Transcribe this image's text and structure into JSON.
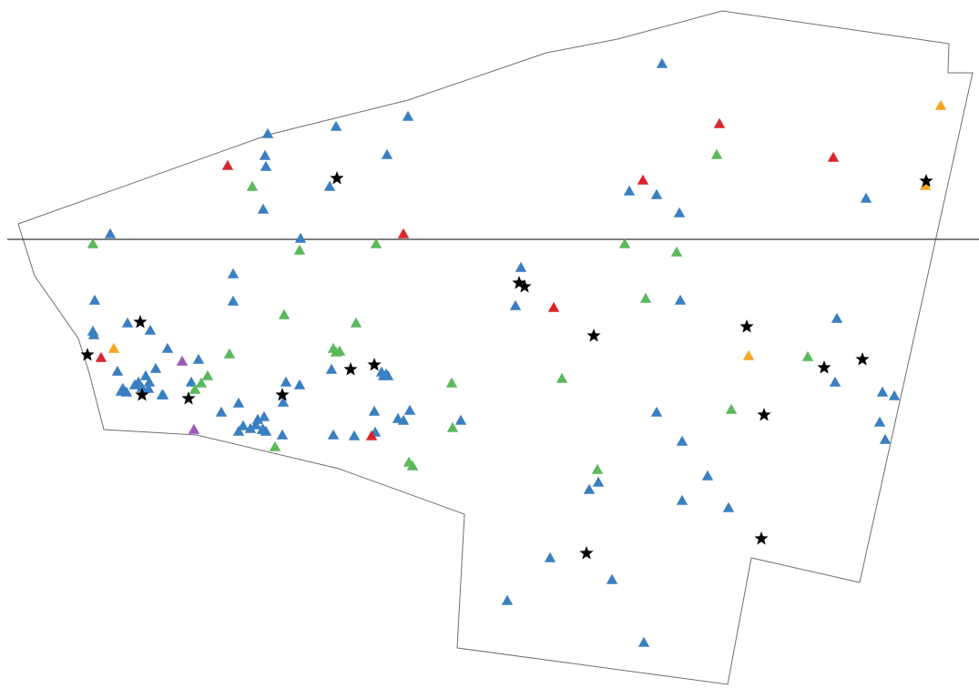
{
  "map": {
    "colors": {
      "background": "#ffffff",
      "outline": "#6e6e6e",
      "divider": "#333333",
      "blue": "#3a7fc1",
      "green": "#5cb85c",
      "red": "#d9262c",
      "orange": "#f5a623",
      "purple": "#9b59b6",
      "star": "#000000"
    },
    "marker_types": [
      "triangle",
      "star"
    ],
    "triangle_categories": [
      "blue",
      "green",
      "red",
      "orange",
      "purple"
    ],
    "counts": {
      "blue": 86,
      "green": 28,
      "red": 10,
      "orange": 4,
      "purple": 2,
      "star": 22
    }
  }
}
